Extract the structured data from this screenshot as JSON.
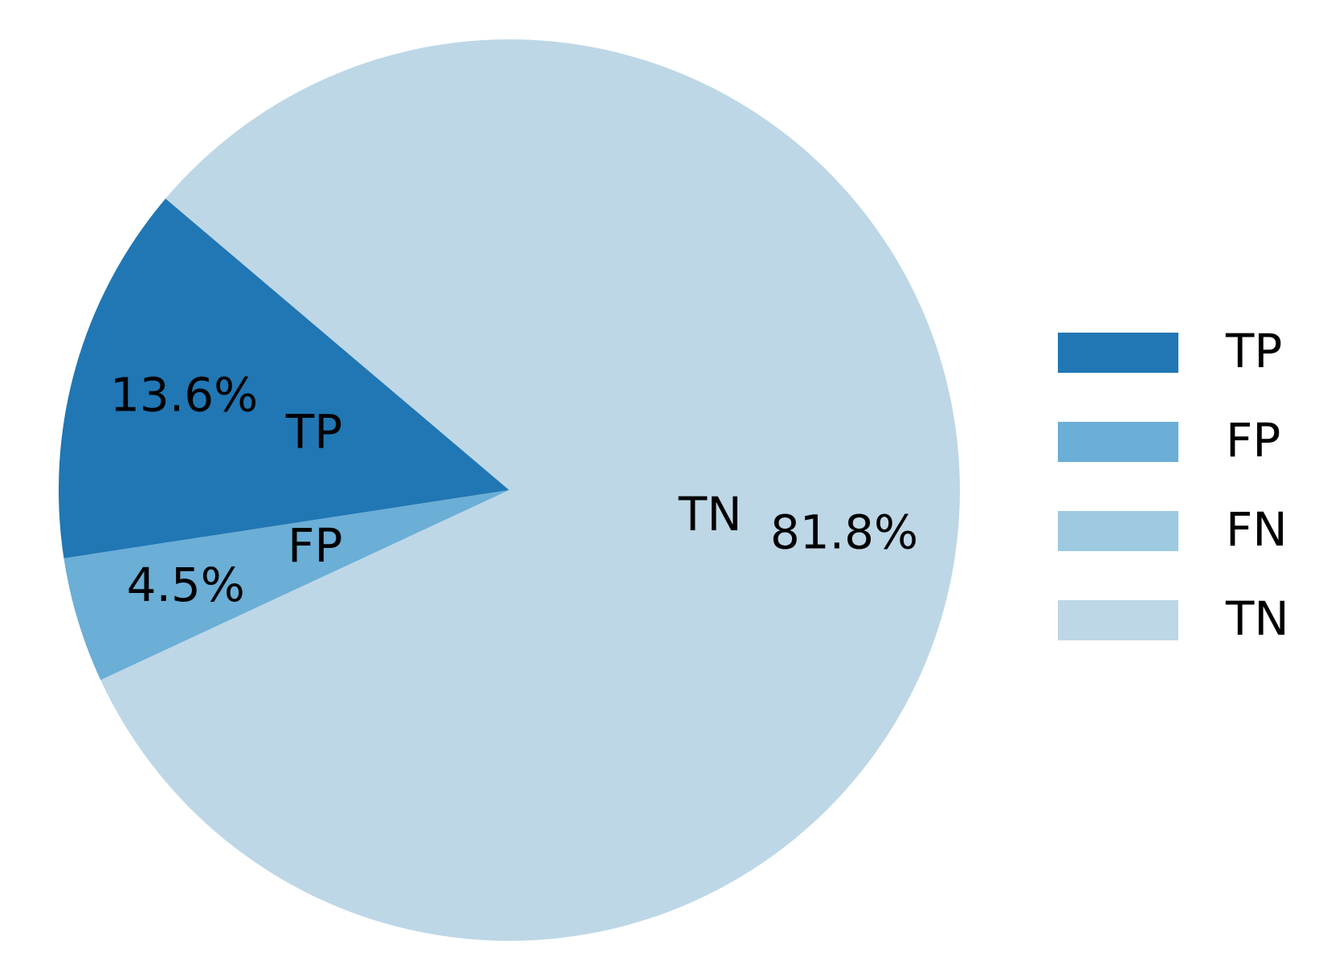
{
  "chart_data": {
    "type": "pie",
    "categories": [
      "TP",
      "FP",
      "FN",
      "TN"
    ],
    "values": [
      13.6,
      4.5,
      0,
      81.8
    ],
    "value_labels": [
      "13.6%",
      "4.5%",
      null,
      "81.8%"
    ],
    "colors": [
      "#2077b4",
      "#6baed6",
      "#9ecae1",
      "#bdd7e7"
    ],
    "legend": "right"
  }
}
